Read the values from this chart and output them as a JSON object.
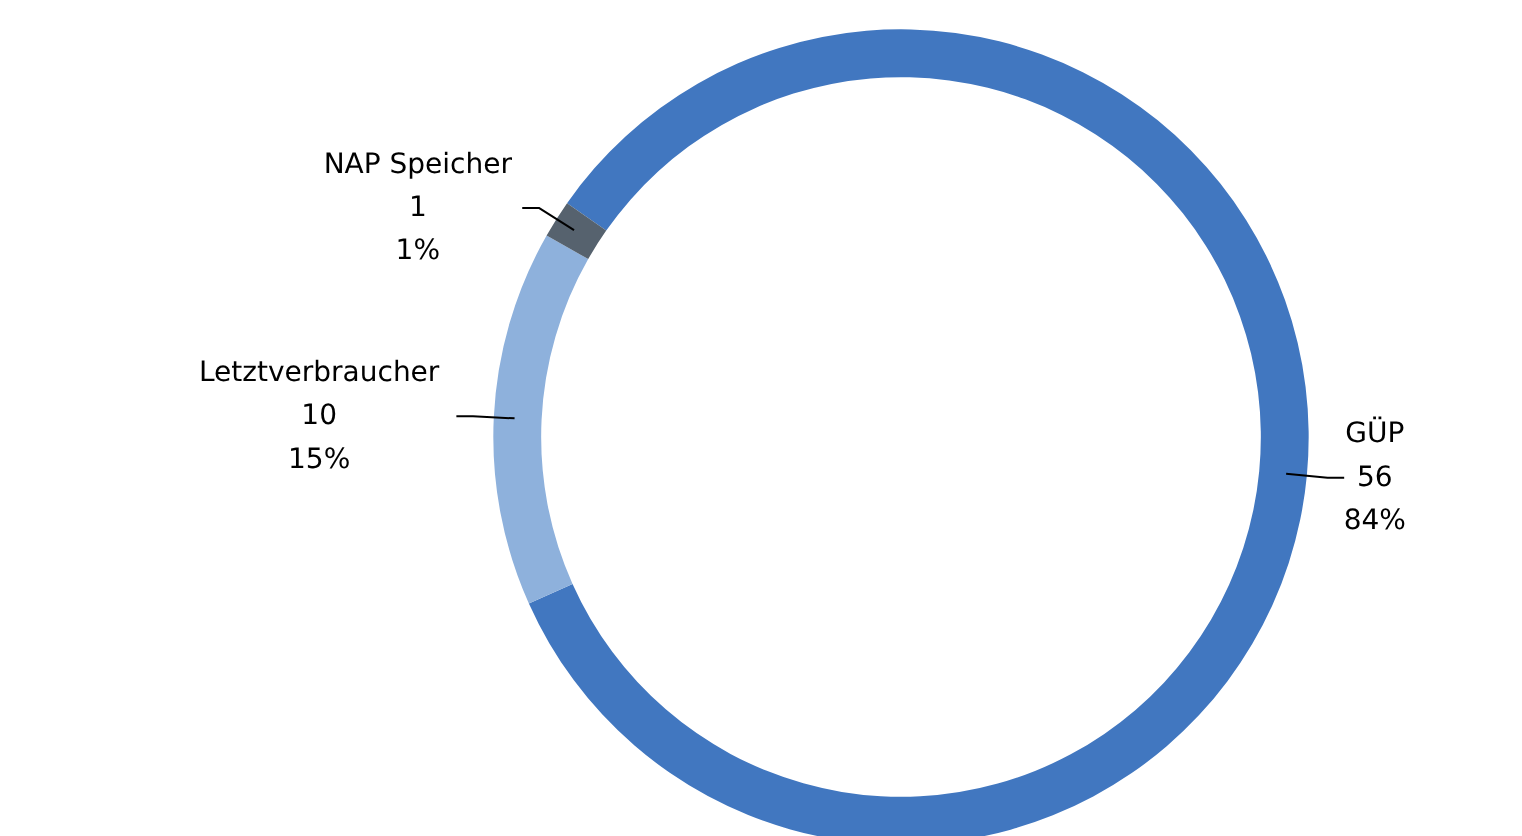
{
  "chart_data": {
    "type": "donut",
    "categories": [
      "GÜP",
      "Letztverbraucher",
      "NAP Speicher"
    ],
    "values": [
      56,
      10,
      1
    ],
    "colors": [
      "#4177c0",
      "#8eb1dc",
      "#56626e"
    ],
    "value_labels": [
      "56\n84%",
      "10\n15%",
      "1\n1%"
    ]
  }
}
